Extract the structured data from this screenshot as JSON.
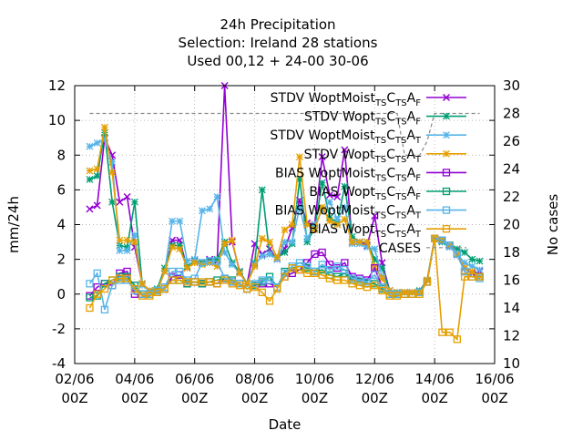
{
  "chart_data": {
    "type": "line",
    "title_lines": [
      "24h Precipitation",
      "Selection: Ireland      28 stations",
      "Used  00,12  + 24-00 30-06"
    ],
    "xlabel": "Date",
    "ylabel": "mm/24h",
    "y2label": "No cases",
    "ylim": [
      -4,
      12
    ],
    "y2lim": [
      10,
      30
    ],
    "xlim_days": [
      2,
      16
    ],
    "xticks": [
      {
        "day": 2,
        "label": [
          "02/06",
          "00Z"
        ]
      },
      {
        "day": 4,
        "label": [
          "04/06",
          "00Z"
        ]
      },
      {
        "day": 6,
        "label": [
          "06/06",
          "00Z"
        ]
      },
      {
        "day": 8,
        "label": [
          "08/06",
          "00Z"
        ]
      },
      {
        "day": 10,
        "label": [
          "10/06",
          "00Z"
        ]
      },
      {
        "day": 12,
        "label": [
          "12/06",
          "00Z"
        ]
      },
      {
        "day": 14,
        "label": [
          "14/06",
          "00Z"
        ]
      },
      {
        "day": 16,
        "label": [
          "16/06",
          "00Z"
        ]
      }
    ],
    "yticks": [
      "-4",
      "-2",
      "0",
      "2",
      "4",
      "6",
      "8",
      "10",
      "12"
    ],
    "y2ticks": [
      "10",
      "12",
      "14",
      "16",
      "18",
      "20",
      "22",
      "24",
      "26",
      "28",
      "30"
    ],
    "grid": true,
    "legend_position": "top-right",
    "x": [
      2.0,
      2.25,
      2.5,
      2.75,
      3.0,
      3.25,
      3.5,
      3.75,
      4.0,
      4.25,
      4.5,
      4.75,
      5.0,
      5.25,
      5.5,
      5.75,
      6.0,
      6.25,
      6.5,
      6.75,
      7.0,
      7.25,
      7.5,
      7.75,
      8.0,
      8.25,
      8.5,
      8.75,
      9.0,
      9.25,
      9.5,
      9.75,
      10.0,
      10.25,
      10.5,
      10.75,
      11.0,
      11.25,
      11.5,
      11.75,
      12.0,
      12.25,
      12.5,
      12.75,
      13.0,
      13.25,
      13.5,
      13.75,
      14.0,
      14.25,
      14.5,
      14.75,
      15.0,
      15.25,
      15.5,
      15.75
    ],
    "series": [
      {
        "name": "STDV WoptMoist",
        "sub": "TS",
        "sub_after_c": "TS",
        "a_sub": "F",
        "color": "#9400d3",
        "marker": "x",
        "axis": "y",
        "values": [
          null,
          null,
          4.9,
          5.1,
          9.0,
          8.0,
          5.3,
          5.6,
          2.7,
          0.6,
          0.2,
          0.2,
          1.3,
          3.1,
          3.1,
          1.5,
          1.9,
          1.8,
          2.0,
          1.9,
          12.0,
          3.0,
          1.3,
          0.6,
          2.9,
          2.3,
          2.6,
          2.0,
          2.6,
          3.8,
          5.4,
          4.1,
          4.0,
          7.9,
          5.7,
          5.6,
          8.3,
          3.0,
          3.0,
          2.8,
          4.5,
          1.8,
          0.2,
          0.1,
          0.1,
          0.1,
          0.1,
          0.8,
          3.2,
          3.1,
          2.8,
          2.3,
          1.5,
          1.2,
          1.3,
          null
        ]
      },
      {
        "name": "STDV Wopt",
        "sub": "TS",
        "sub_after_c": "TS",
        "a_sub": "F",
        "color": "#009e73",
        "marker": "star",
        "axis": "y",
        "values": [
          null,
          null,
          6.6,
          6.8,
          9.3,
          5.3,
          2.8,
          2.7,
          5.3,
          0.6,
          0.2,
          0.3,
          1.5,
          2.8,
          2.8,
          1.6,
          1.9,
          1.8,
          1.9,
          2.0,
          3.0,
          1.8,
          1.3,
          0.6,
          1.8,
          6.0,
          2.3,
          2.1,
          2.4,
          2.9,
          6.6,
          3.0,
          3.8,
          6.4,
          4.4,
          4.1,
          6.2,
          3.3,
          3.0,
          3.0,
          2.0,
          1.5,
          0.2,
          0.1,
          0.1,
          0.1,
          0.2,
          0.8,
          3.2,
          3.0,
          2.8,
          2.6,
          2.4,
          2.0,
          1.9,
          null
        ]
      },
      {
        "name": "STDV WoptMoist",
        "sub": "TS",
        "sub_after_c": "TS",
        "a_sub": "T",
        "color": "#56b4e9",
        "marker": "star",
        "axis": "y",
        "values": [
          null,
          null,
          8.5,
          8.7,
          8.9,
          7.6,
          2.5,
          2.5,
          3.4,
          0.5,
          0.2,
          0.2,
          1.3,
          4.2,
          4.2,
          1.9,
          2.0,
          4.8,
          4.9,
          5.6,
          2.4,
          1.7,
          1.2,
          0.6,
          1.7,
          2.2,
          2.3,
          2.0,
          3.0,
          3.0,
          5.0,
          3.2,
          4.0,
          4.8,
          5.3,
          4.3,
          5.0,
          2.9,
          2.9,
          2.7,
          2.6,
          1.0,
          0.2,
          0.1,
          0.1,
          0.1,
          0.1,
          0.8,
          3.2,
          3.1,
          2.7,
          2.3,
          1.8,
          1.6,
          1.4,
          null
        ]
      },
      {
        "name": "STDV Wopt",
        "sub": "TS",
        "sub_after_c": "TS",
        "a_sub": "T",
        "color": "#e69f00",
        "marker": "star",
        "axis": "y",
        "values": [
          null,
          null,
          7.1,
          7.2,
          9.6,
          7.0,
          3.1,
          3.1,
          3.0,
          0.6,
          0.2,
          0.2,
          1.3,
          2.7,
          2.6,
          1.5,
          1.8,
          1.7,
          1.8,
          1.6,
          2.9,
          3.1,
          1.2,
          0.6,
          1.6,
          3.2,
          3.0,
          2.1,
          3.7,
          4.0,
          7.9,
          4.0,
          3.7,
          5.0,
          4.2,
          4.0,
          4.3,
          3.0,
          3.0,
          3.0,
          1.6,
          0.9,
          0.2,
          0.1,
          0.1,
          0.1,
          0.1,
          0.8,
          3.2,
          3.1,
          2.8,
          2.3,
          1.5,
          1.3,
          1.0,
          null
        ]
      },
      {
        "name": "BIAS WoptMoist",
        "sub": "TS",
        "sub_after_c": "TS",
        "a_sub": "F",
        "color": "#9400d3",
        "marker": "square",
        "axis": "y",
        "values": [
          null,
          null,
          -0.1,
          0.4,
          0.6,
          0.5,
          1.2,
          1.3,
          0.0,
          0.0,
          0.0,
          0.1,
          0.3,
          1.0,
          1.1,
          0.6,
          0.7,
          0.6,
          0.7,
          0.6,
          0.9,
          0.7,
          0.6,
          0.3,
          0.5,
          0.6,
          0.6,
          0.4,
          1.0,
          1.2,
          1.4,
          1.8,
          2.3,
          2.4,
          1.7,
          1.5,
          1.8,
          1.0,
          0.9,
          0.8,
          1.5,
          0.4,
          0.0,
          0.0,
          0.0,
          0.0,
          0.1,
          0.7,
          3.2,
          3.1,
          2.8,
          2.3,
          1.3,
          1.0,
          1.0,
          null
        ]
      },
      {
        "name": "BIAS Wopt",
        "sub": "TS",
        "sub_after_c": "TS",
        "a_sub": "F",
        "color": "#009e73",
        "marker": "square",
        "axis": "y",
        "values": [
          null,
          null,
          -0.2,
          -0.1,
          0.6,
          0.8,
          1.0,
          1.0,
          0.5,
          0.0,
          0.0,
          0.1,
          0.3,
          0.8,
          0.8,
          0.6,
          0.7,
          0.6,
          0.7,
          0.8,
          0.9,
          0.8,
          0.6,
          0.3,
          0.5,
          0.7,
          1.0,
          0.4,
          1.3,
          1.5,
          1.6,
          1.5,
          1.3,
          1.4,
          1.1,
          1.0,
          1.2,
          0.8,
          0.7,
          0.6,
          0.6,
          0.3,
          0.0,
          0.0,
          0.0,
          0.0,
          0.1,
          0.7,
          3.2,
          3.1,
          2.8,
          2.3,
          1.3,
          1.0,
          1.0,
          null
        ]
      },
      {
        "name": "BIAS WoptMoist",
        "sub": "TS",
        "sub_after_c": "TS",
        "a_sub": "T",
        "color": "#56b4e9",
        "marker": "square",
        "axis": "y",
        "values": [
          null,
          null,
          0.6,
          1.2,
          -0.9,
          0.5,
          0.8,
          0.8,
          0.2,
          0.0,
          0.0,
          0.2,
          0.4,
          1.3,
          1.3,
          0.8,
          0.9,
          1.8,
          1.9,
          1.9,
          0.9,
          0.7,
          0.6,
          0.3,
          0.6,
          0.8,
          0.8,
          0.4,
          1.2,
          1.6,
          1.8,
          1.6,
          1.3,
          1.7,
          1.4,
          1.6,
          1.4,
          0.9,
          0.8,
          0.7,
          1.1,
          0.4,
          0.0,
          0.0,
          0.0,
          0.0,
          0.1,
          0.7,
          3.2,
          3.1,
          2.8,
          2.3,
          1.3,
          1.0,
          0.9,
          null
        ]
      },
      {
        "name": "BIAS Wopt",
        "sub": "TS",
        "sub_after_c": "TS",
        "a_sub": "T",
        "color": "#e69f00",
        "marker": "square",
        "axis": "y",
        "values": [
          null,
          null,
          -0.8,
          0.0,
          0.3,
          0.8,
          0.9,
          0.9,
          0.3,
          -0.1,
          -0.1,
          0.1,
          0.3,
          0.8,
          0.8,
          0.7,
          0.7,
          0.7,
          0.7,
          0.6,
          0.8,
          0.6,
          0.5,
          0.3,
          0.4,
          0.1,
          -0.4,
          0.3,
          1.0,
          1.5,
          1.4,
          1.2,
          1.2,
          1.1,
          0.9,
          0.8,
          0.8,
          0.6,
          0.5,
          0.4,
          0.5,
          0.2,
          -0.1,
          -0.1,
          0.0,
          0.0,
          0.0,
          0.7,
          3.2,
          -2.2,
          -2.2,
          -2.6,
          1.0,
          1.0,
          1.0,
          null
        ]
      },
      {
        "name": "CASES",
        "color": "#888888",
        "dashed": true,
        "axis": "y2",
        "values": [
          null,
          null,
          28.0,
          28.0,
          28.0,
          28.0,
          28.0,
          28.0,
          28.0,
          28.0,
          28.0,
          28.0,
          28.0,
          28.0,
          28.0,
          28.0,
          28.0,
          28.0,
          28.0,
          28.0,
          28.0,
          28.0,
          28.0,
          28.0,
          28.0,
          28.0,
          28.0,
          28.0,
          28.0,
          28.0,
          28.0,
          28.0,
          28.0,
          28.0,
          28.0,
          28.0,
          28.0,
          28.0,
          28.0,
          28.0,
          28.0,
          28.0,
          28.0,
          28.0,
          25.0,
          25.0,
          25.0,
          26.0,
          28.0,
          28.0,
          28.0,
          28.0,
          28.0,
          28.0,
          28.0,
          null
        ]
      }
    ]
  }
}
